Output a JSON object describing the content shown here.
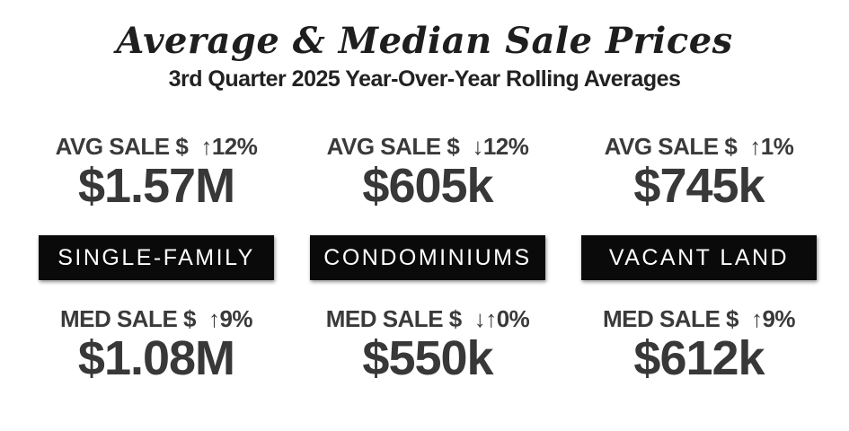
{
  "header": {
    "title": "Average & Median Sale Prices",
    "subtitle": "3rd Quarter 2025 Year-Over-Year Rolling Averages"
  },
  "colors": {
    "background": "#ffffff",
    "title_text": "#1e1e1e",
    "stat_text": "#3a3a3a",
    "category_bar_bg": "#0a0a0a",
    "category_bar_text": "#ffffff"
  },
  "columns": [
    {
      "category": "SINGLE-FAMILY",
      "avg": {
        "label": "AVG SALE $",
        "delta": "↑12%",
        "value": "$1.57M"
      },
      "med": {
        "label": "MED SALE $",
        "delta": "↑9%",
        "value": "$1.08M"
      }
    },
    {
      "category": "CONDOMINIUMS",
      "avg": {
        "label": "AVG SALE $",
        "delta": "↓12%",
        "value": "$605k"
      },
      "med": {
        "label": "MED SALE $",
        "delta": "↓↑0%",
        "value": "$550k"
      }
    },
    {
      "category": "VACANT LAND",
      "avg": {
        "label": "AVG SALE $",
        "delta": "↑1%",
        "value": "$745k"
      },
      "med": {
        "label": "MED SALE $",
        "delta": "↑9%",
        "value": "$612k"
      }
    }
  ],
  "chart_data": {
    "type": "table",
    "title": "Average & Median Sale Prices",
    "subtitle": "3rd Quarter 2025 Year-Over-Year Rolling Averages",
    "categories": [
      "SINGLE-FAMILY",
      "CONDOMINIUMS",
      "VACANT LAND"
    ],
    "series": [
      {
        "name": "Average Sale Price",
        "values": [
          1570000,
          605000,
          745000
        ],
        "display_labels": [
          "$1.57M",
          "$605k",
          "$745k"
        ],
        "yoy_change_pct": [
          12,
          -12,
          1
        ],
        "yoy_direction": [
          "up",
          "down",
          "up"
        ]
      },
      {
        "name": "Median Sale Price",
        "values": [
          1080000,
          550000,
          612000
        ],
        "display_labels": [
          "$1.08M",
          "$550k",
          "$612k"
        ],
        "yoy_change_pct": [
          9,
          0,
          9
        ],
        "yoy_direction": [
          "up",
          "flat",
          "up"
        ]
      }
    ],
    "legend_position": "none",
    "grid": false
  }
}
